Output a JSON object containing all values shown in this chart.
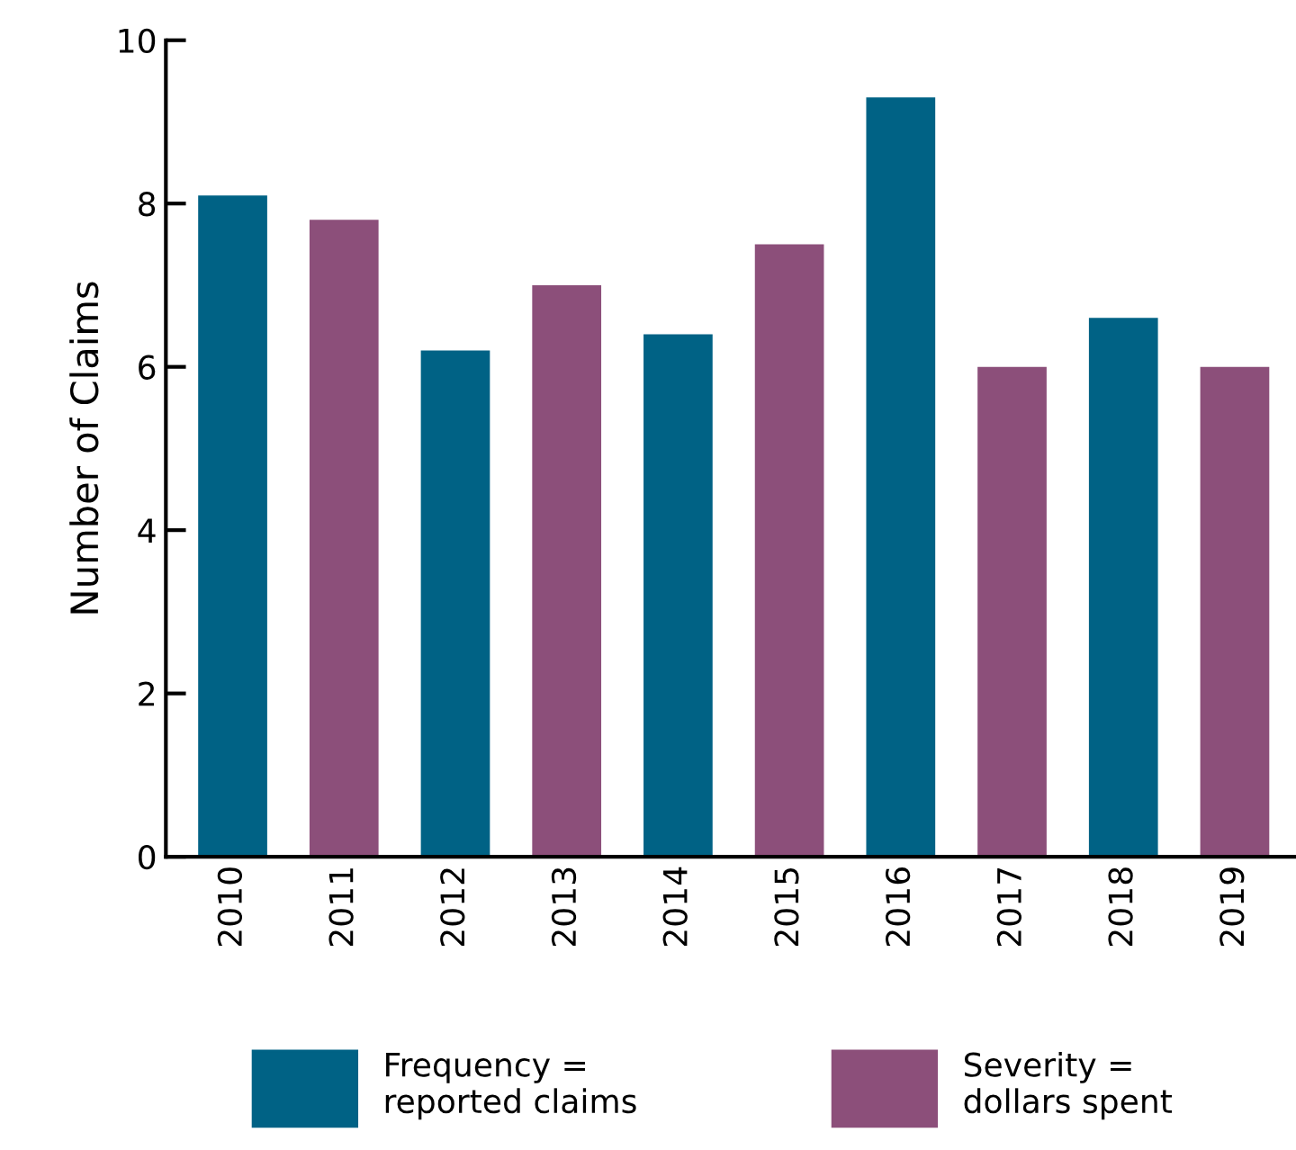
{
  "chart_data": {
    "type": "bar",
    "ylabel": "Number of Claims",
    "categories": [
      "2010",
      "2011",
      "2012",
      "2013",
      "2014",
      "2015",
      "2016",
      "2017",
      "2018",
      "2019"
    ],
    "series": [
      {
        "name": "Frequency =\nreported claims",
        "color": "#006285",
        "values": [
          8.1,
          null,
          6.2,
          null,
          6.4,
          null,
          9.3,
          null,
          6.6,
          null
        ]
      },
      {
        "name": "Severity =\ndollars spent",
        "color": "#8c4f7a",
        "values": [
          null,
          7.8,
          null,
          7.0,
          null,
          7.5,
          null,
          6.0,
          null,
          6.0
        ]
      }
    ],
    "ylim": [
      0,
      10
    ],
    "yticks": [
      0,
      2,
      4,
      6,
      8,
      10
    ],
    "grid": false,
    "legend": "bottom"
  }
}
